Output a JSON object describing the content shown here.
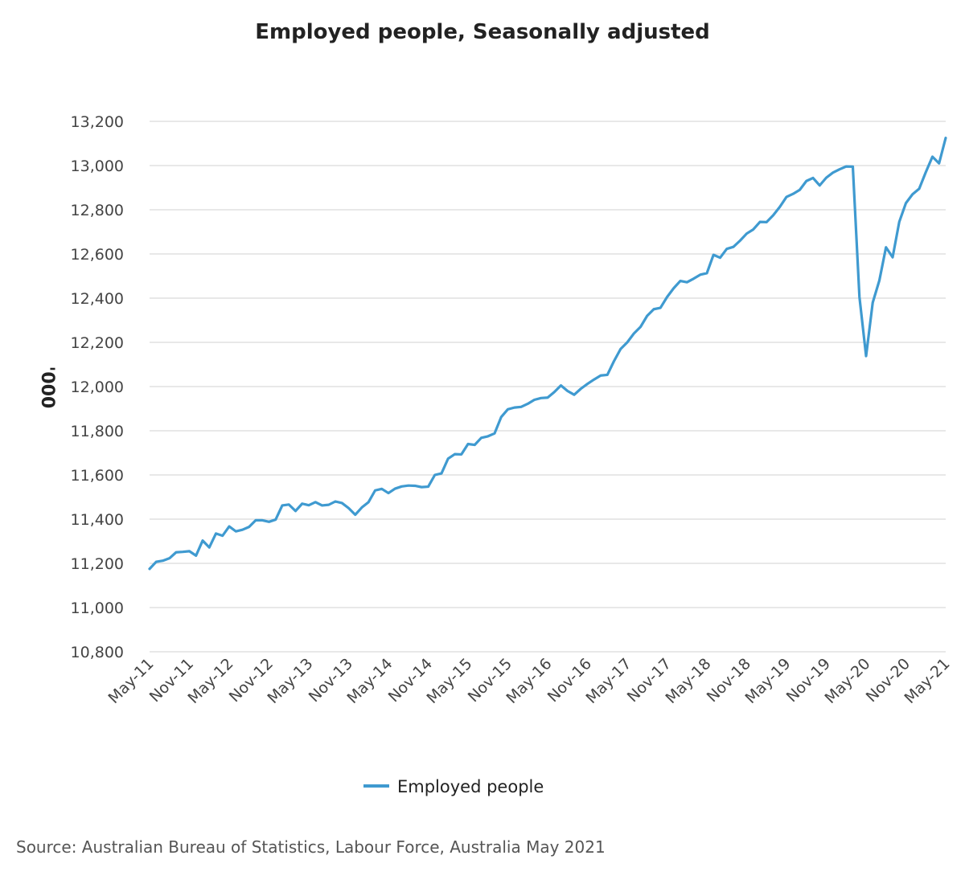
{
  "chart_data": {
    "type": "line",
    "title": "Employed people, Seasonally adjusted",
    "ylabel": "'000",
    "xlabel": "",
    "ylim": [
      10800,
      13200
    ],
    "yticks": [
      "10,800",
      "11,000",
      "11,200",
      "11,400",
      "11,600",
      "11,800",
      "12,000",
      "12,200",
      "12,400",
      "12,600",
      "12,800",
      "13,000",
      "13,200"
    ],
    "xticks": [
      "May-11",
      "Nov-11",
      "May-12",
      "Nov-12",
      "May-13",
      "Nov-13",
      "May-14",
      "Nov-14",
      "May-15",
      "Nov-15",
      "May-16",
      "Nov-16",
      "May-17",
      "Nov-17",
      "May-18",
      "Nov-18",
      "May-19",
      "Nov-19",
      "May-20",
      "Nov-20",
      "May-21"
    ],
    "x_start": "May-11",
    "x_end": "May-21",
    "grid": true,
    "legend_position": "bottom",
    "series": [
      {
        "name": "Employed people",
        "color": "#3f9ad0",
        "values": [
          11175,
          11207,
          11212,
          11223,
          11250,
          11252,
          11255,
          11235,
          11303,
          11272,
          11335,
          11325,
          11367,
          11345,
          11352,
          11365,
          11395,
          11395,
          11388,
          11398,
          11462,
          11466,
          11437,
          11470,
          11463,
          11477,
          11462,
          11465,
          11480,
          11473,
          11450,
          11420,
          11453,
          11477,
          11530,
          11537,
          11518,
          11538,
          11548,
          11552,
          11551,
          11545,
          11547,
          11600,
          11607,
          11674,
          11694,
          11693,
          11740,
          11736,
          11768,
          11775,
          11788,
          11862,
          11897,
          11905,
          11908,
          11922,
          11940,
          11948,
          11950,
          11975,
          12005,
          11980,
          11963,
          11990,
          12012,
          12032,
          12050,
          12053,
          12115,
          12170,
          12200,
          12240,
          12270,
          12320,
          12350,
          12356,
          12405,
          12445,
          12478,
          12472,
          12488,
          12506,
          12513,
          12596,
          12583,
          12623,
          12632,
          12660,
          12692,
          12711,
          12745,
          12744,
          12775,
          12813,
          12858,
          12872,
          12890,
          12930,
          12944,
          12910,
          12945,
          12968,
          12983,
          12996,
          12995,
          12405,
          12138,
          12380,
          12480,
          12630,
          12585,
          12745,
          12830,
          12870,
          12895,
          12970,
          13040,
          13010,
          13125
        ]
      }
    ]
  },
  "source": "Source: Australian Bureau of Statistics, Labour Force, Australia May 2021"
}
